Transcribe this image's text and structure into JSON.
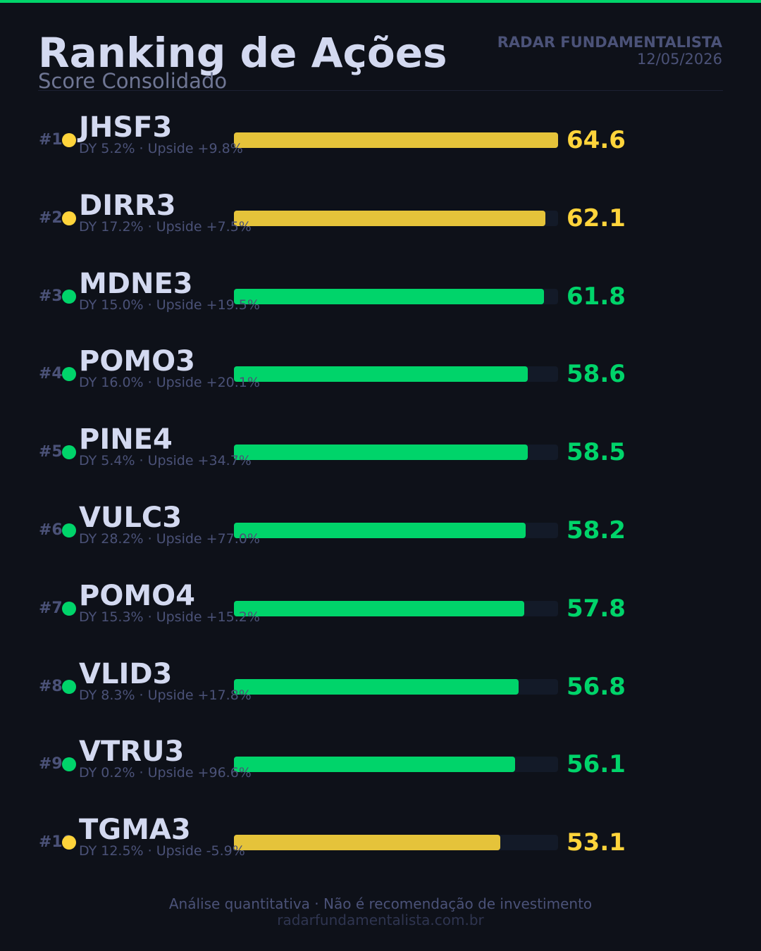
{
  "header": {
    "title": "Ranking de Ações",
    "subtitle": "Score Consolidado",
    "brand": "RADAR FUNDAMENTALISTA",
    "date": "12/05/2026"
  },
  "colors": {
    "accent_green": "#00d46a",
    "highlight_yellow": "#e5c33a",
    "score_yellow": "#ffd43b",
    "dot_yellow": "#ffd43b"
  },
  "chart_data": {
    "type": "bar",
    "orientation": "horizontal",
    "title": "Ranking de Ações",
    "subtitle": "Score Consolidado",
    "xlim": [
      0,
      64.6
    ],
    "grid": false,
    "rows": [
      {
        "rank": "#1",
        "ticker": "JHSF3",
        "meta": "DY 5.2%  ·  Upside +9.8%",
        "value": 64.6,
        "score": "64.6",
        "color": "yellow"
      },
      {
        "rank": "#2",
        "ticker": "DIRR3",
        "meta": "DY 17.2%  ·  Upside +7.5%",
        "value": 62.1,
        "score": "62.1",
        "color": "yellow"
      },
      {
        "rank": "#3",
        "ticker": "MDNE3",
        "meta": "DY 15.0%  ·  Upside +19.5%",
        "value": 61.8,
        "score": "61.8",
        "color": "green"
      },
      {
        "rank": "#4",
        "ticker": "POMO3",
        "meta": "DY 16.0%  ·  Upside +20.1%",
        "value": 58.6,
        "score": "58.6",
        "color": "green"
      },
      {
        "rank": "#5",
        "ticker": "PINE4",
        "meta": "DY 5.4%  ·  Upside +34.7%",
        "value": 58.5,
        "score": "58.5",
        "color": "green"
      },
      {
        "rank": "#6",
        "ticker": "VULC3",
        "meta": "DY 28.2%  ·  Upside +77.0%",
        "value": 58.2,
        "score": "58.2",
        "color": "green"
      },
      {
        "rank": "#7",
        "ticker": "POMO4",
        "meta": "DY 15.3%  ·  Upside +15.2%",
        "value": 57.8,
        "score": "57.8",
        "color": "green"
      },
      {
        "rank": "#8",
        "ticker": "VLID3",
        "meta": "DY 8.3%  ·  Upside +17.8%",
        "value": 56.8,
        "score": "56.8",
        "color": "green"
      },
      {
        "rank": "#9",
        "ticker": "VTRU3",
        "meta": "DY 0.2%  ·  Upside +96.6%",
        "value": 56.1,
        "score": "56.1",
        "color": "green"
      },
      {
        "rank": "#10",
        "ticker": "TGMA3",
        "meta": "DY 12.5%  ·  Upside -5.9%",
        "value": 53.1,
        "score": "53.1",
        "color": "yellow"
      }
    ]
  },
  "footer": {
    "note": "Análise quantitativa  ·  Não é recomendação de investimento",
    "url": "radarfundamentalista.com.br"
  }
}
